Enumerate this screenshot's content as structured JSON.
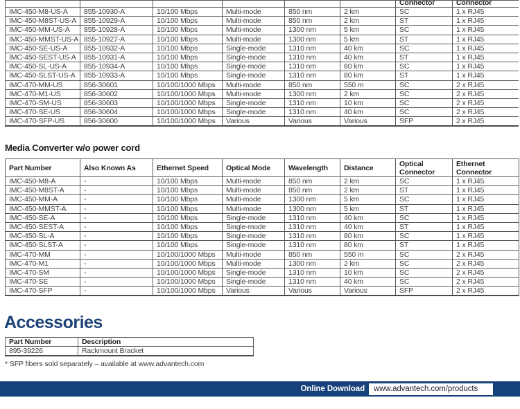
{
  "page": {
    "section2_title": "Media Converter w/o power cord",
    "accessories_title": "Accessories",
    "footnote": "* SFP fibers sold separately – available at www.advantech.com",
    "footer": {
      "label": "Online Download",
      "url": "www.advantech.com/products"
    },
    "colors": {
      "navy": "#17417a",
      "heading_blue": "#1d4178",
      "table_border": "#59595b"
    }
  },
  "table_top": {
    "clipped_headers": [
      "",
      "",
      "",
      "",
      "",
      "",
      "Connector",
      "Connector"
    ],
    "rows": [
      [
        "IMC-450-M8-US-A",
        "855-10930-A",
        "10/100 Mbps",
        "Multi-mode",
        "850 nm",
        "2 km",
        "SC",
        "1 x RJ45"
      ],
      [
        "IMC-450-M8ST-US-A",
        "855-10929-A",
        "10/100 Mbps",
        "Multi-mode",
        "850 nm",
        "2 km",
        "ST",
        "1 x RJ45"
      ],
      [
        "IMC-450-MM-US-A",
        "855-10928-A",
        "10/100 Mbps",
        "Multi-mode",
        "1300 nm",
        "5 km",
        "SC",
        "1 x RJ45"
      ],
      [
        "IMC-450-MMST-US-A",
        "855-10927-A",
        "10/100 Mbps",
        "Multi-mode",
        "1300 nm",
        "5 km",
        "ST",
        "1 x RJ45"
      ],
      [
        "IMC-450-SE-US-A",
        "855-10932-A",
        "10/100 Mbps",
        "Single-mode",
        "1310 nm",
        "40 km",
        "SC",
        "1 x RJ45"
      ],
      [
        "IMC-450-SEST-US-A",
        "855-10931-A",
        "10/100 Mbps",
        "Single-mode",
        "1310 nm",
        "40 km",
        "ST",
        "1 x RJ45"
      ],
      [
        "IMC-450-SL-US-A",
        "855-10934-A",
        "10/100 Mbps",
        "Single-mode",
        "1310 nm",
        "80 km",
        "SC",
        "1 x RJ45"
      ],
      [
        "IMC-450-SLST-US-A",
        "855-10933-A",
        "10/100 Mbps",
        "Single-mode",
        "1310 nm",
        "80 km",
        "ST",
        "1 x RJ45"
      ],
      [
        "IMC-470-MM-US",
        "856-30601",
        "10/100/1000 Mbps",
        "Multi-mode",
        "850 nm",
        "550 m",
        "SC",
        "2 x RJ45"
      ],
      [
        "IMC-470-M1-US",
        "856-30602",
        "10/100/1000 Mbps",
        "Multi-mode",
        "1300 nm",
        "2 km",
        "SC",
        "2 x RJ45"
      ],
      [
        "IMC-470-SM-US",
        "856-30603",
        "10/100/1000 Mbps",
        "Single-mode",
        "1310 nm",
        "10 km",
        "SC",
        "2 x RJ45"
      ],
      [
        "IMC-470-SE-US",
        "856-30604",
        "10/100/1000 Mbps",
        "Single-mode",
        "1310 nm",
        "40 km",
        "SC",
        "2 x RJ45"
      ],
      [
        "IMC-470-SFP-US",
        "856-30600",
        "10/100/1000 Mbps",
        "Various",
        "Various",
        "Various",
        "SFP",
        "2 x RJ45"
      ]
    ]
  },
  "table_wo_cord": {
    "headers": [
      "Part Number",
      "Also Known As",
      "Ethernet Speed",
      "Optical Mode",
      "Wavelength",
      "Distance",
      "Optical\nConnector",
      "Ethernet\nConnector"
    ],
    "rows": [
      [
        "IMC-450-M8-A",
        "-",
        "10/100 Mbps",
        "Multi-mode",
        "850 nm",
        "2 km",
        "SC",
        "1 x RJ45"
      ],
      [
        "IMC-450-M8ST-A",
        "-",
        "10/100 Mbps",
        "Multi-mode",
        "850 nm",
        "2 km",
        "ST",
        "1 x RJ45"
      ],
      [
        "IMC-450-MM-A",
        "-",
        "10/100 Mbps",
        "Multi-mode",
        "1300 nm",
        "5 km",
        "SC",
        "1 x RJ45"
      ],
      [
        "IMC-450-MMST-A",
        "-",
        "10/100 Mbps",
        "Multi-mode",
        "1300 nm",
        "5 km",
        "ST",
        "1 x RJ45"
      ],
      [
        "IMC-450-SE-A",
        "-",
        "10/100 Mbps",
        "Single-mode",
        "1310 nm",
        "40 km",
        "SC",
        "1 x RJ45"
      ],
      [
        "IMC-450-SEST-A",
        "-",
        "10/100 Mbps",
        "Single-mode",
        "1310 nm",
        "40 km",
        "ST",
        "1 x RJ45"
      ],
      [
        "IMC-450-SL-A",
        "-",
        "10/100 Mbps",
        "Single-mode",
        "1310 nm",
        "80 km",
        "SC",
        "1 x RJ45"
      ],
      [
        "IMC-450-SLST-A",
        "-",
        "10/100 Mbps",
        "Single-mode",
        "1310 nm",
        "80 km",
        "ST",
        "1 x RJ45"
      ],
      [
        "IMC-470-MM",
        "-",
        "10/100/1000 Mbps",
        "Multi-mode",
        "850 nm",
        "550 m",
        "SC",
        "2 x RJ45"
      ],
      [
        "IMC-470-M1",
        "-",
        "10/100/1000 Mbps",
        "Multi-mode",
        "1300 nm",
        "2 km",
        "SC",
        "2 x RJ45"
      ],
      [
        "IMC-470-SM",
        "-",
        "10/100/1000 Mbps",
        "Single-mode",
        "1310 nm",
        "10 km",
        "SC",
        "2 x RJ45"
      ],
      [
        "IMC-470-SE",
        "-",
        "10/100/1000 Mbps",
        "Single-mode",
        "1310 nm",
        "40 km",
        "SC",
        "2 x RJ45"
      ],
      [
        "IMC-470-SFP",
        "-",
        "10/100/1000 Mbps",
        "Various",
        "Various",
        "Various",
        "SFP",
        "2 x RJ45"
      ]
    ]
  },
  "accessories_table": {
    "headers": [
      "Part Number",
      "Description"
    ],
    "rows": [
      [
        "895-39226",
        "Rackmount Bracket"
      ]
    ]
  }
}
